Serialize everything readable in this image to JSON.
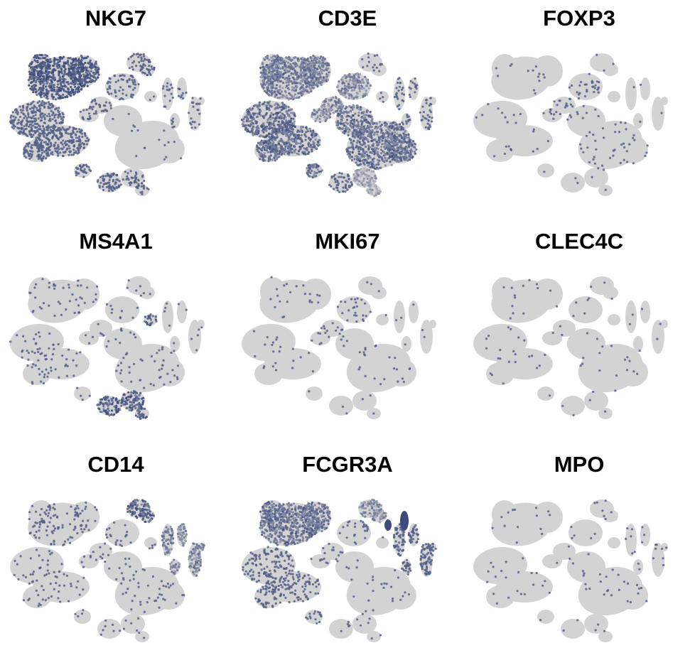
{
  "chart_data": {
    "type": "scatter",
    "plot_kind": "feature-plot grid (tSNE embedding colored by gene expression)",
    "layout": "3x3 grid",
    "axes_visible": false,
    "grid": false,
    "legend": "none",
    "colors": {
      "low": "#d3d3d3",
      "high": "#3f4b7a",
      "background": "#ffffff"
    },
    "panels": [
      {
        "title": "NKG7",
        "expression_level": "high",
        "high_expression_clusters": [
          "upper-left group",
          "left-middle group (partial)",
          "bottom-left group (partial)",
          "top-middle group (partial)"
        ]
      },
      {
        "title": "CD3E",
        "expression_level": "high",
        "high_expression_clusters": [
          "upper-left group",
          "left-middle group",
          "center-right large group",
          "bottom-left group"
        ]
      },
      {
        "title": "FOXP3",
        "expression_level": "sparse",
        "high_expression_clusters": [
          "center group (few cells)"
        ]
      },
      {
        "title": "MS4A1",
        "expression_level": "moderate",
        "high_expression_clusters": [
          "bottom-left pair",
          "small right-center group"
        ]
      },
      {
        "title": "MKI67",
        "expression_level": "sparse",
        "high_expression_clusters": [
          "center group (few cells)"
        ]
      },
      {
        "title": "CLEC4C",
        "expression_level": "sparse",
        "high_expression_clusters": []
      },
      {
        "title": "CD14",
        "expression_level": "moderate",
        "high_expression_clusters": [
          "top-middle group",
          "right islands"
        ]
      },
      {
        "title": "FCGR3A",
        "expression_level": "moderate",
        "high_expression_clusters": [
          "upper-left group",
          "top-middle group (partial)",
          "right islands (partial)"
        ]
      },
      {
        "title": "MPO",
        "expression_level": "sparse",
        "high_expression_clusters": []
      }
    ]
  }
}
